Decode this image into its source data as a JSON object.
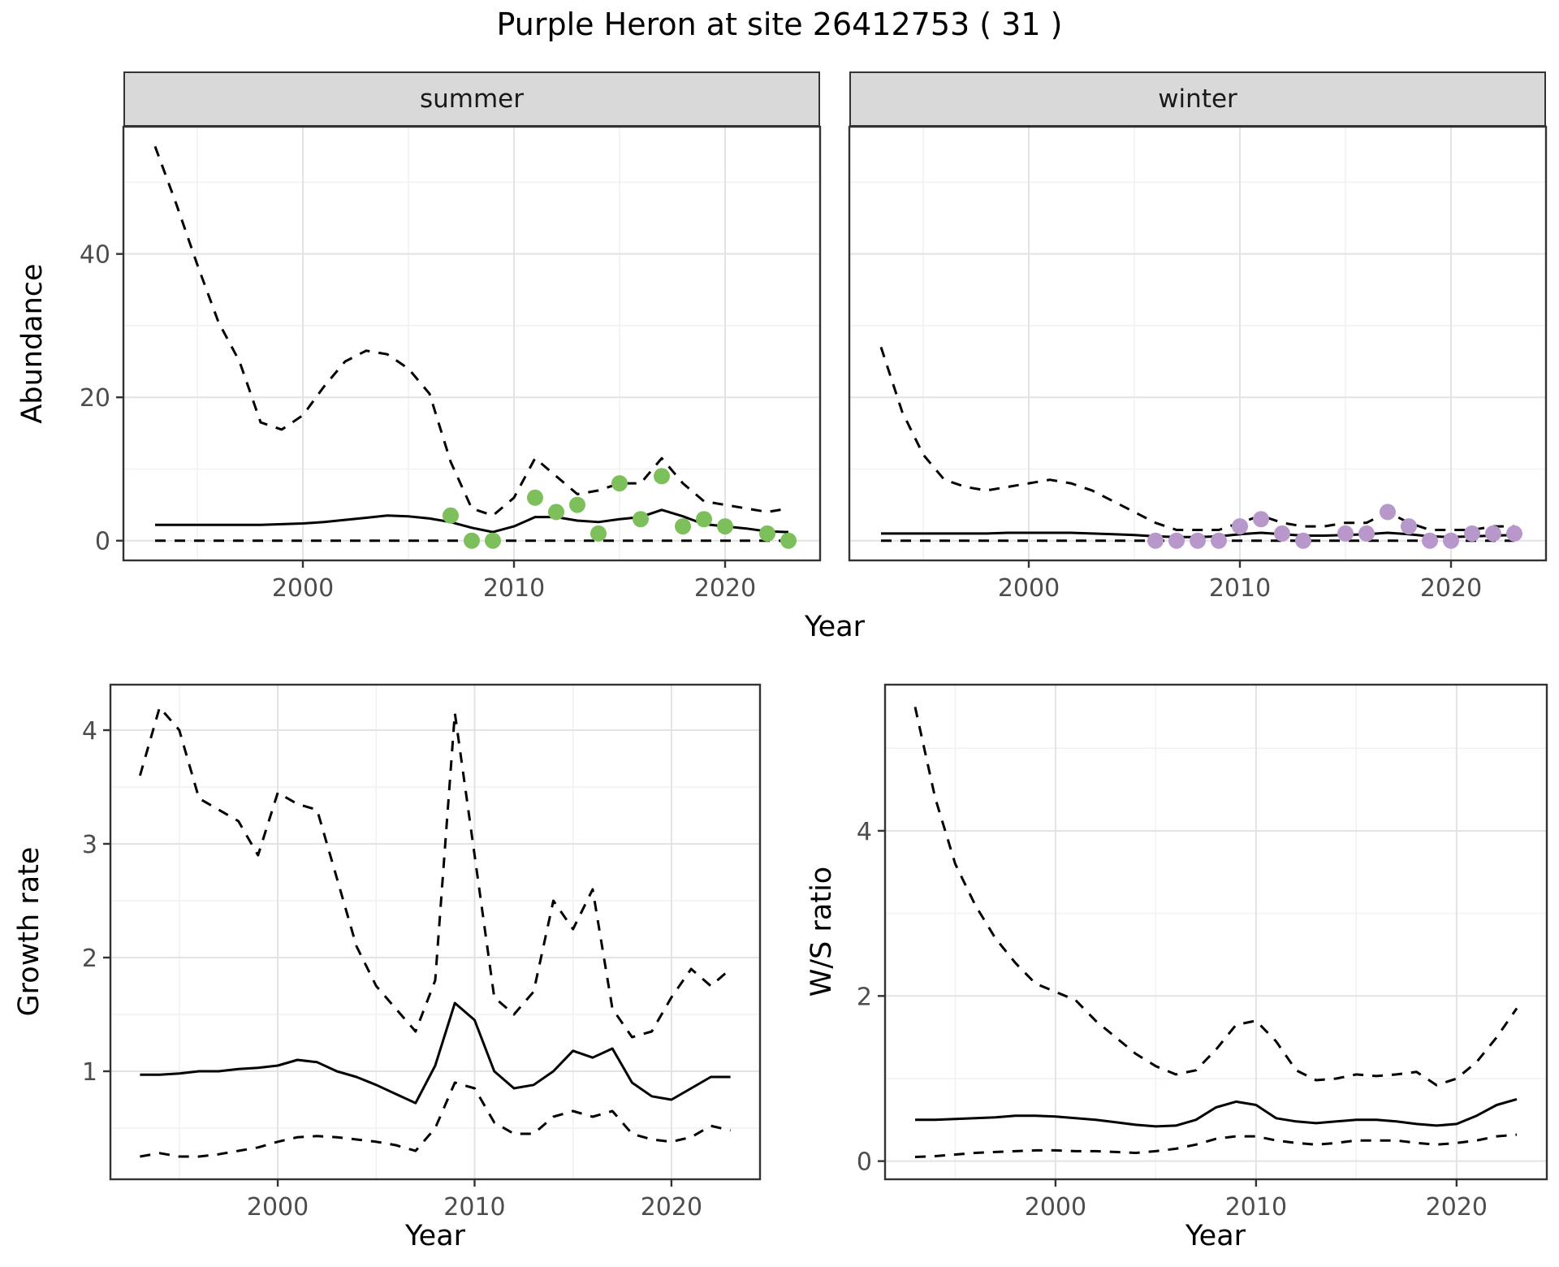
{
  "title": "Purple Heron at site 26412753 ( 31 )",
  "top_plot": {
    "ylabel": "Abundance",
    "xlabel": "Year",
    "facets": [
      "summer",
      "winter"
    ]
  },
  "bottom_left": {
    "ylabel": "Growth rate",
    "xlabel": "Year"
  },
  "bottom_right": {
    "ylabel": "W/S ratio",
    "xlabel": "Year"
  },
  "style": {
    "summer_point_color": "#7CBF5B",
    "winter_point_color": "#B897CB",
    "line_color": "#000000",
    "strip_fill": "#D9D9D9",
    "panel_border": "#333333",
    "grid_major": "#E3E3E3",
    "grid_minor": "#F1F1F1",
    "tick_label_color": "#4D4D4D"
  },
  "chart_data": [
    {
      "id": "abundance_summer",
      "type": "line",
      "facet": "summer",
      "xlabel": "Year",
      "ylabel": "Abundance",
      "xlim": [
        1991.5,
        2024.5
      ],
      "ylim": [
        -2.75,
        57.75
      ],
      "xticks": [
        2000,
        2010,
        2020
      ],
      "yticks": [
        0,
        20,
        40
      ],
      "xticks_minor": [
        1995,
        2005,
        2015
      ],
      "yticks_minor": [
        10,
        30,
        50
      ],
      "x": [
        1993,
        1994,
        1995,
        1996,
        1997,
        1998,
        1999,
        2000,
        2001,
        2002,
        2003,
        2004,
        2005,
        2006,
        2007,
        2008,
        2009,
        2010,
        2011,
        2012,
        2013,
        2014,
        2015,
        2016,
        2017,
        2018,
        2019,
        2020,
        2021,
        2022,
        2023
      ],
      "series": [
        {
          "name": "upper_ci",
          "style": "dashed",
          "values": [
            55,
            47,
            38.5,
            30.5,
            25,
            16.5,
            15.5,
            17.5,
            21.5,
            25,
            26.5,
            26,
            24,
            20.5,
            11,
            4.5,
            3.5,
            6,
            11.5,
            9,
            6.5,
            7,
            8,
            8,
            11.5,
            8,
            5.5,
            5,
            4.5,
            4,
            4.5
          ]
        },
        {
          "name": "mean",
          "style": "solid",
          "values": [
            2.2,
            2.2,
            2.2,
            2.2,
            2.2,
            2.2,
            2.3,
            2.4,
            2.6,
            2.9,
            3.2,
            3.5,
            3.4,
            3.1,
            2.6,
            1.8,
            1.2,
            2.0,
            3.3,
            3.3,
            2.8,
            2.6,
            3.0,
            3.3,
            4.3,
            3.4,
            2.3,
            2.0,
            1.7,
            1.3,
            1.2
          ]
        },
        {
          "name": "lower_ci",
          "style": "dashed",
          "values": [
            0,
            0,
            0,
            0,
            0,
            0,
            0,
            0,
            0,
            0,
            0,
            0,
            0,
            0,
            0,
            0,
            0,
            0,
            0,
            0,
            0,
            0,
            0,
            0,
            0,
            0,
            0,
            0,
            0,
            0,
            0
          ]
        },
        {
          "name": "observed_counts",
          "style": "points",
          "color_key": "summer_point_color",
          "x": [
            2007,
            2008,
            2009,
            2011,
            2012,
            2013,
            2014,
            2015,
            2016,
            2017,
            2018,
            2019,
            2020,
            2022,
            2023
          ],
          "y": [
            3.5,
            0,
            0,
            6,
            4,
            5,
            1,
            8,
            3,
            9,
            2,
            3,
            2,
            1,
            0
          ]
        }
      ]
    },
    {
      "id": "abundance_winter",
      "type": "line",
      "facet": "winter",
      "xlabel": "Year",
      "ylabel": "Abundance",
      "xlim": [
        1991.5,
        2024.5
      ],
      "ylim": [
        -2.75,
        57.75
      ],
      "xticks": [
        2000,
        2010,
        2020
      ],
      "yticks": [
        0,
        20,
        40
      ],
      "xticks_minor": [
        1995,
        2005,
        2015
      ],
      "yticks_minor": [
        10,
        30,
        50
      ],
      "x": [
        1993,
        1994,
        1995,
        1996,
        1997,
        1998,
        1999,
        2000,
        2001,
        2002,
        2003,
        2004,
        2005,
        2006,
        2007,
        2008,
        2009,
        2010,
        2011,
        2012,
        2013,
        2014,
        2015,
        2016,
        2017,
        2018,
        2019,
        2020,
        2021,
        2022,
        2023
      ],
      "series": [
        {
          "name": "upper_ci",
          "style": "dashed",
          "values": [
            27,
            18,
            12,
            8.5,
            7.5,
            7,
            7.5,
            8,
            8.5,
            8,
            7,
            5.5,
            4,
            2.5,
            1.5,
            1.5,
            1.5,
            2.5,
            3.5,
            2.5,
            2,
            2,
            2.5,
            2.5,
            4,
            2.5,
            1.5,
            1.5,
            1.5,
            2,
            2
          ]
        },
        {
          "name": "mean",
          "style": "solid",
          "values": [
            1.0,
            1.0,
            1.0,
            1.0,
            1.0,
            1.0,
            1.1,
            1.1,
            1.1,
            1.1,
            1.0,
            0.9,
            0.8,
            0.6,
            0.5,
            0.5,
            0.6,
            0.9,
            1.1,
            0.9,
            0.7,
            0.7,
            0.8,
            0.9,
            1.1,
            0.9,
            0.6,
            0.5,
            0.6,
            0.7,
            0.8
          ]
        },
        {
          "name": "lower_ci",
          "style": "dashed",
          "values": [
            0,
            0,
            0,
            0,
            0,
            0,
            0,
            0,
            0,
            0,
            0,
            0,
            0,
            0,
            0,
            0,
            0,
            0,
            0,
            0,
            0,
            0,
            0,
            0,
            0,
            0,
            0,
            0,
            0,
            0,
            0
          ]
        },
        {
          "name": "observed_counts",
          "style": "points",
          "color_key": "winter_point_color",
          "x": [
            2006,
            2007,
            2008,
            2009,
            2010,
            2011,
            2012,
            2013,
            2015,
            2016,
            2017,
            2018,
            2019,
            2020,
            2021,
            2022,
            2023
          ],
          "y": [
            0,
            0,
            0,
            0,
            2,
            3,
            1,
            0,
            1,
            1,
            4,
            2,
            0,
            0,
            1,
            1,
            1
          ]
        }
      ]
    },
    {
      "id": "growth_rate",
      "type": "line",
      "xlabel": "Year",
      "ylabel": "Growth rate",
      "xlim": [
        1991.5,
        2024.5
      ],
      "ylim": [
        0.05,
        4.4
      ],
      "xticks": [
        2000,
        2010,
        2020
      ],
      "yticks": [
        1,
        2,
        3,
        4
      ],
      "xticks_minor": [
        1995,
        2005,
        2015
      ],
      "yticks_minor": [
        0.5,
        1.5,
        2.5,
        3.5
      ],
      "x": [
        1993,
        1994,
        1995,
        1996,
        1997,
        1998,
        1999,
        2000,
        2001,
        2002,
        2003,
        2004,
        2005,
        2006,
        2007,
        2008,
        2009,
        2010,
        2011,
        2012,
        2013,
        2014,
        2015,
        2016,
        2017,
        2018,
        2019,
        2020,
        2021,
        2022,
        2023
      ],
      "series": [
        {
          "name": "upper_ci",
          "style": "dashed",
          "values": [
            3.6,
            4.2,
            4.0,
            3.4,
            3.3,
            3.2,
            2.9,
            3.45,
            3.35,
            3.3,
            2.7,
            2.1,
            1.75,
            1.55,
            1.35,
            1.8,
            4.15,
            2.9,
            1.65,
            1.5,
            1.7,
            2.5,
            2.25,
            2.6,
            1.55,
            1.3,
            1.35,
            1.65,
            1.9,
            1.75,
            1.9
          ]
        },
        {
          "name": "mean",
          "style": "solid",
          "values": [
            0.97,
            0.97,
            0.98,
            1.0,
            1.0,
            1.02,
            1.03,
            1.05,
            1.1,
            1.08,
            1.0,
            0.95,
            0.88,
            0.8,
            0.72,
            1.05,
            1.6,
            1.45,
            1.0,
            0.85,
            0.88,
            1.0,
            1.18,
            1.12,
            1.2,
            0.9,
            0.78,
            0.75,
            0.85,
            0.95,
            0.95
          ]
        },
        {
          "name": "lower_ci",
          "style": "dashed",
          "values": [
            0.25,
            0.28,
            0.25,
            0.25,
            0.27,
            0.3,
            0.33,
            0.38,
            0.42,
            0.43,
            0.42,
            0.4,
            0.38,
            0.35,
            0.3,
            0.5,
            0.9,
            0.85,
            0.55,
            0.45,
            0.45,
            0.6,
            0.65,
            0.6,
            0.65,
            0.45,
            0.4,
            0.38,
            0.42,
            0.52,
            0.48
          ]
        }
      ]
    },
    {
      "id": "ws_ratio",
      "type": "line",
      "xlabel": "Year",
      "ylabel": "W/S ratio",
      "xlim": [
        1991.5,
        2024.5
      ],
      "ylim": [
        -0.22,
        5.77
      ],
      "xticks": [
        2000,
        2010,
        2020
      ],
      "yticks": [
        0,
        2,
        4
      ],
      "xticks_minor": [
        1995,
        2005,
        2015
      ],
      "yticks_minor": [
        1,
        3,
        5
      ],
      "x": [
        1993,
        1994,
        1995,
        1996,
        1997,
        1998,
        1999,
        2000,
        2001,
        2002,
        2003,
        2004,
        2005,
        2006,
        2007,
        2008,
        2009,
        2010,
        2011,
        2012,
        2013,
        2014,
        2015,
        2016,
        2017,
        2018,
        2019,
        2020,
        2021,
        2022,
        2023
      ],
      "series": [
        {
          "name": "upper_ci",
          "style": "dashed",
          "values": [
            5.5,
            4.4,
            3.6,
            3.1,
            2.7,
            2.4,
            2.15,
            2.05,
            1.95,
            1.7,
            1.5,
            1.3,
            1.15,
            1.05,
            1.1,
            1.35,
            1.65,
            1.7,
            1.45,
            1.1,
            0.98,
            1.0,
            1.05,
            1.03,
            1.05,
            1.08,
            0.92,
            1.0,
            1.2,
            1.5,
            1.85
          ]
        },
        {
          "name": "mean",
          "style": "solid",
          "values": [
            0.5,
            0.5,
            0.51,
            0.52,
            0.53,
            0.55,
            0.55,
            0.54,
            0.52,
            0.5,
            0.47,
            0.44,
            0.42,
            0.43,
            0.5,
            0.65,
            0.72,
            0.68,
            0.52,
            0.48,
            0.46,
            0.48,
            0.5,
            0.5,
            0.48,
            0.45,
            0.43,
            0.45,
            0.55,
            0.68,
            0.75
          ]
        },
        {
          "name": "lower_ci",
          "style": "dashed",
          "values": [
            0.05,
            0.06,
            0.08,
            0.1,
            0.11,
            0.12,
            0.13,
            0.13,
            0.12,
            0.12,
            0.11,
            0.1,
            0.12,
            0.15,
            0.2,
            0.27,
            0.3,
            0.3,
            0.25,
            0.22,
            0.2,
            0.22,
            0.25,
            0.25,
            0.25,
            0.22,
            0.2,
            0.22,
            0.25,
            0.3,
            0.32
          ]
        }
      ]
    }
  ]
}
